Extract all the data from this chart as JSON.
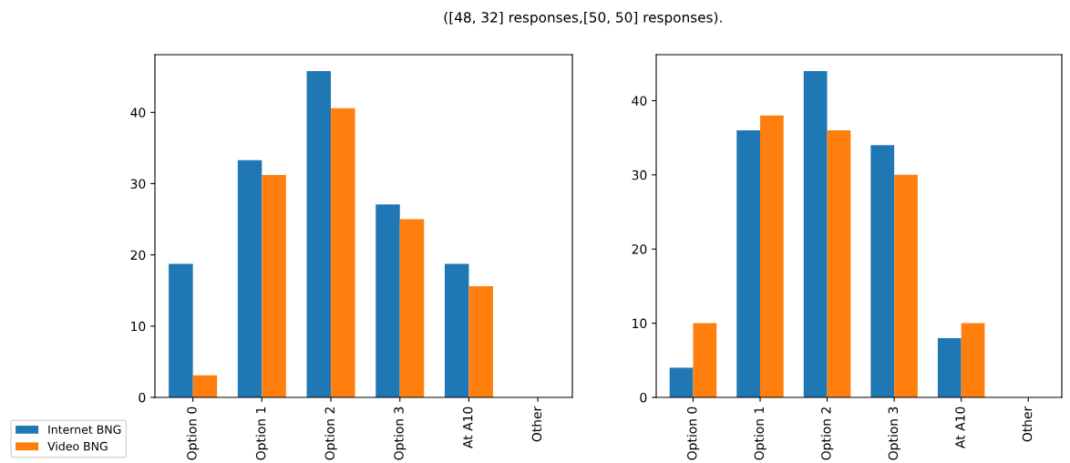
{
  "chart_data": [
    {
      "type": "bar",
      "title": "([48, 32] responses,[50, 50] responses).",
      "categories": [
        "Option 0",
        "Option 1",
        "Option 2",
        "Option 3",
        "At A10",
        "Other"
      ],
      "series": [
        {
          "name": "Internet BNG",
          "color": "#1f77b4",
          "values": [
            18.75,
            33.3,
            45.8,
            27.1,
            18.75,
            0
          ]
        },
        {
          "name": "Video BNG",
          "color": "#ff7f0e",
          "values": [
            3.1,
            31.2,
            40.6,
            25.0,
            15.6,
            0
          ]
        }
      ],
      "ylim": [
        0,
        48.1
      ],
      "yticks": [
        0,
        10,
        20,
        30,
        40
      ],
      "grid": false,
      "legend": "bottom left"
    },
    {
      "type": "bar",
      "categories": [
        "Option 0",
        "Option 1",
        "Option 2",
        "Option 3",
        "At A10",
        "Other"
      ],
      "series": [
        {
          "color": "#1f77b4",
          "values": [
            4,
            36,
            44,
            34,
            8,
            0
          ]
        },
        {
          "color": "#ff7f0e",
          "values": [
            10,
            38,
            36,
            30,
            10,
            0
          ]
        }
      ],
      "ylim": [
        0,
        46.2
      ],
      "yticks": [
        0,
        10,
        20,
        30,
        40
      ],
      "grid": false
    }
  ]
}
